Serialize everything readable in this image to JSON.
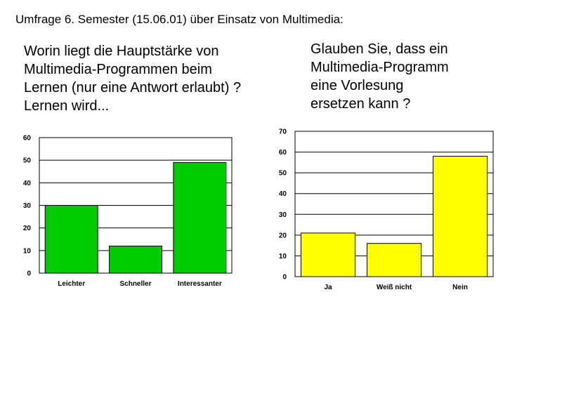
{
  "header": {
    "title": "Umfrage 6. Semester (15.06.01) über Einsatz von Multimedia:"
  },
  "questions": [
    {
      "lines": [
        "Worin liegt die Hauptstärke von",
        "Multimedia-Programmen beim",
        "Lernen (nur eine Antwort erlaubt) ?",
        "Lernen wird..."
      ]
    },
    {
      "lines": [
        "Glauben Sie, dass ein",
        "Multimedia-Programm",
        "eine Vorlesung",
        "ersetzen kann ?"
      ]
    }
  ],
  "chart_data": [
    {
      "type": "bar",
      "title": "",
      "xlabel": "",
      "ylabel": "",
      "categories": [
        "Leichter",
        "Schneller",
        "Interessanter"
      ],
      "values": [
        30,
        12,
        49
      ],
      "ylim": [
        0,
        60
      ],
      "yticks": [
        0,
        10,
        20,
        30,
        40,
        50,
        60
      ],
      "bar_color": "#00cc00",
      "grid": true
    },
    {
      "type": "bar",
      "title": "",
      "xlabel": "",
      "ylabel": "",
      "categories": [
        "Ja",
        "Weiß nicht",
        "Nein"
      ],
      "values": [
        21,
        16,
        58
      ],
      "ylim": [
        0,
        70
      ],
      "yticks": [
        0,
        10,
        20,
        30,
        40,
        50,
        60,
        70
      ],
      "bar_color": "#ffff00",
      "grid": true
    }
  ]
}
